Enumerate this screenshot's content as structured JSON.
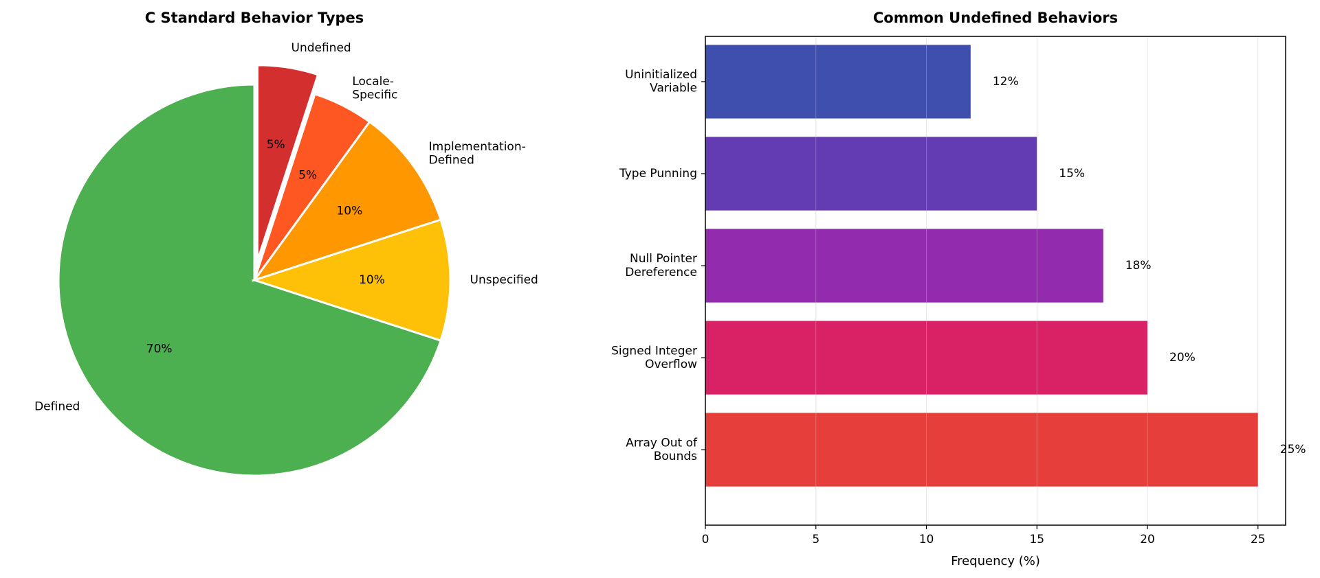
{
  "chart_data": [
    {
      "type": "pie",
      "title": "C Standard Behavior Types",
      "start_angle_deg": 90,
      "direction": "counterclockwise",
      "slices": [
        {
          "label": "Defined",
          "value": 70,
          "pct_label": "70%",
          "color": "#4CAF50",
          "explode": 0
        },
        {
          "label": "Unspecified",
          "value": 10,
          "pct_label": "10%",
          "color": "#FFC107",
          "explode": 0
        },
        {
          "label": "Implementation-\nDefined",
          "value": 10,
          "pct_label": "10%",
          "color": "#FF9800",
          "explode": 0
        },
        {
          "label": "Locale-\nSpecific",
          "value": 5,
          "pct_label": "5%",
          "color": "#FF5722",
          "explode": 0
        },
        {
          "label": "Undefined",
          "value": 5,
          "pct_label": "5%",
          "color": "#D32F2F",
          "explode": 0.1
        }
      ]
    },
    {
      "type": "bar",
      "orientation": "horizontal",
      "title": "Common Undefined Behaviors",
      "xlabel": "Frequency (%)",
      "xlim": [
        0,
        26.25
      ],
      "xticks": [
        0,
        5,
        10,
        15,
        20,
        25
      ],
      "grid": "x",
      "categories": [
        "Uninitialized\nVariable",
        "Type Punning",
        "Null Pointer\nDereference",
        "Signed Integer\nOverflow",
        "Array Out of\nBounds"
      ],
      "values": [
        12,
        15,
        18,
        20,
        25
      ],
      "data_labels": [
        "12%",
        "15%",
        "18%",
        "20%",
        "25%"
      ],
      "colors": [
        "#3949AB",
        "#5E35B1",
        "#8E24AA",
        "#D81B60",
        "#E53935"
      ]
    }
  ]
}
